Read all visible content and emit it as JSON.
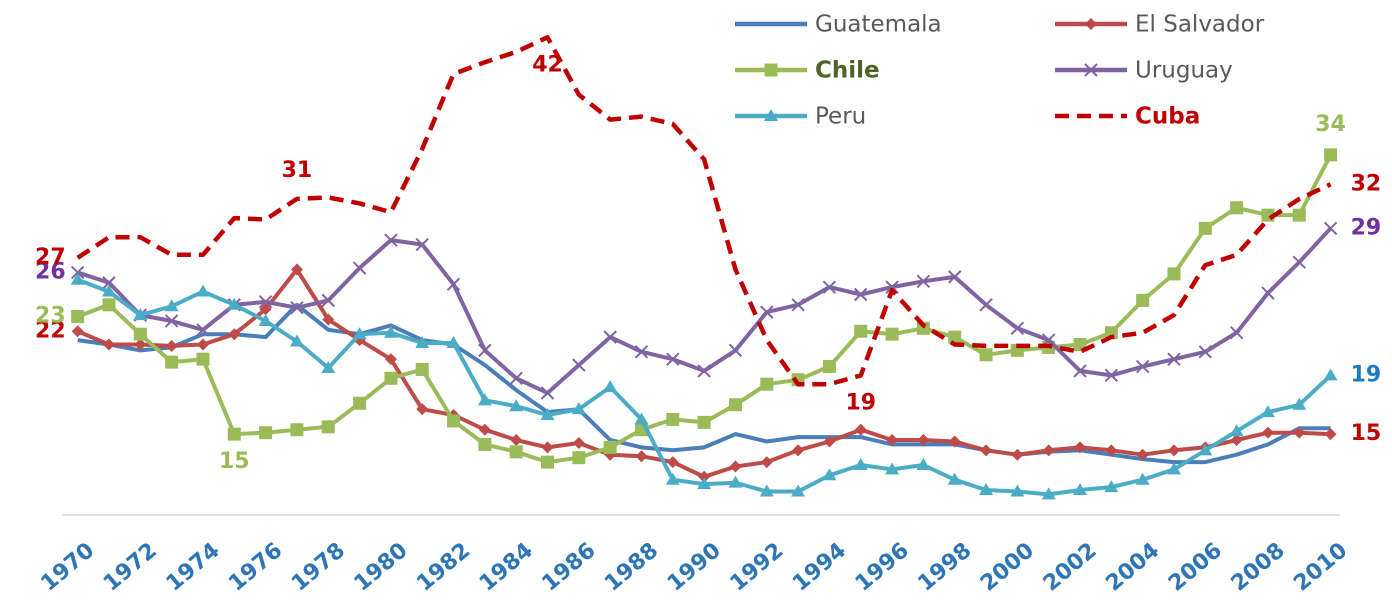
{
  "chart_data": {
    "type": "line",
    "x": [
      1970,
      1971,
      1972,
      1973,
      1974,
      1975,
      1976,
      1977,
      1978,
      1979,
      1980,
      1981,
      1982,
      1983,
      1984,
      1985,
      1986,
      1987,
      1988,
      1989,
      1990,
      1991,
      1992,
      1993,
      1994,
      1995,
      1996,
      1997,
      1998,
      1999,
      2000,
      2001,
      2002,
      2003,
      2004,
      2005,
      2006,
      2007,
      2008,
      2009,
      2010
    ],
    "xlim": [
      1969.5,
      2010.3
    ],
    "xticks": [
      1970,
      1972,
      1974,
      1976,
      1978,
      1980,
      1982,
      1984,
      1986,
      1988,
      1990,
      1992,
      1994,
      1996,
      1998,
      2000,
      2002,
      2004,
      2006,
      2008,
      2010
    ],
    "ylim": [
      9.5,
      44.5
    ],
    "series": [
      {
        "name": "Guatemala",
        "color": "#4a7ebb",
        "marker": "none",
        "dash": false,
        "values": [
          21.4,
          21.1,
          20.7,
          20.9,
          21.8,
          21.8,
          21.6,
          23.8,
          22.1,
          21.8,
          22.4,
          21.4,
          21.1,
          19.7,
          18.0,
          16.5,
          16.7,
          14.6,
          14.1,
          13.9,
          14.1,
          15.0,
          14.5,
          14.8,
          14.8,
          14.8,
          14.3,
          14.3,
          14.3,
          13.9,
          13.6,
          13.8,
          13.9,
          13.6,
          13.3,
          13.1,
          13.1,
          13.6,
          14.3,
          15.4,
          15.4
        ],
        "labeled_points": []
      },
      {
        "name": "El Salvador",
        "color": "#be4b48",
        "label_color": "#c00000",
        "marker": "diamond",
        "dash": false,
        "values": [
          22,
          21.1,
          21.1,
          21.0,
          21.1,
          21.8,
          23.5,
          26.2,
          22.8,
          21.4,
          20.1,
          16.7,
          16.3,
          15.3,
          14.6,
          14.1,
          14.4,
          13.6,
          13.5,
          13.1,
          12.1,
          12.8,
          13.1,
          13.9,
          14.5,
          15.3,
          14.6,
          14.6,
          14.5,
          13.9,
          13.6,
          13.9,
          14.1,
          13.9,
          13.6,
          13.9,
          14.1,
          14.6,
          15.1,
          15.1,
          15
        ],
        "labeled_points": [
          0,
          40
        ]
      },
      {
        "name": "Chile",
        "color": "#9bbb59",
        "label_color": "#9bbb59",
        "legend_color": "#4f6228",
        "legend_bold": true,
        "marker": "square",
        "dash": false,
        "values": [
          23,
          23.8,
          21.8,
          19.9,
          20.1,
          15,
          15.1,
          15.3,
          15.5,
          17.1,
          18.8,
          19.4,
          15.9,
          14.3,
          13.8,
          13.1,
          13.4,
          14.1,
          15.3,
          16.0,
          15.8,
          17.0,
          18.4,
          18.7,
          19.6,
          22.0,
          21.8,
          22.2,
          21.6,
          20.4,
          20.7,
          20.9,
          21.1,
          21.9,
          24.1,
          25.9,
          29.0,
          30.4,
          29.9,
          29.9,
          34
        ],
        "labeled_points": [
          0,
          5,
          40
        ]
      },
      {
        "name": "Uruguay",
        "color": "#8064a2",
        "label_color": "#7030a0",
        "marker": "x",
        "dash": false,
        "values": [
          26,
          25.3,
          23.1,
          22.7,
          22.1,
          23.8,
          24.0,
          23.6,
          24.1,
          26.3,
          28.2,
          27.9,
          25.2,
          20.7,
          18.8,
          17.8,
          19.7,
          21.6,
          20.6,
          20.1,
          19.3,
          20.7,
          23.3,
          23.8,
          25.0,
          24.5,
          25.0,
          25.4,
          25.7,
          23.8,
          22.2,
          21.4,
          19.3,
          19.0,
          19.6,
          20.1,
          20.6,
          21.9,
          24.6,
          26.7,
          29
        ],
        "labeled_points": [
          0,
          40
        ]
      },
      {
        "name": "Peru",
        "color": "#4bacc6",
        "label_color": "#1f7bbf",
        "marker": "triangle",
        "dash": false,
        "values": [
          25.5,
          24.7,
          23.1,
          23.7,
          24.7,
          23.8,
          22.7,
          21.3,
          19.5,
          21.8,
          21.9,
          21.2,
          21.2,
          17.3,
          16.9,
          16.3,
          16.7,
          18.2,
          16.0,
          11.9,
          11.6,
          11.7,
          11.1,
          11.1,
          12.2,
          12.9,
          12.6,
          12.9,
          11.9,
          11.2,
          11.1,
          10.9,
          11.2,
          11.4,
          11.9,
          12.6,
          13.9,
          15.2,
          16.5,
          17.0,
          19
        ],
        "labeled_points": [
          40
        ]
      },
      {
        "name": "Cuba",
        "color": "#c00000",
        "label_color": "#c00000",
        "legend_color": "#c00000",
        "legend_bold": true,
        "marker": "none",
        "dash": true,
        "values": [
          27,
          28.4,
          28.4,
          27.2,
          27.2,
          29.7,
          29.6,
          31,
          31.1,
          30.7,
          30.1,
          34.4,
          39.5,
          40.3,
          41.0,
          42,
          38.1,
          36.4,
          36.6,
          36.1,
          33.7,
          26.2,
          21.4,
          18.4,
          18.4,
          19,
          24.8,
          22.4,
          21.1,
          21.0,
          21.0,
          21.0,
          20.6,
          21.6,
          21.9,
          23.1,
          26.5,
          27.2,
          29.6,
          31.0,
          32
        ],
        "labeled_points": [
          0,
          7,
          15,
          25,
          40
        ]
      }
    ]
  }
}
